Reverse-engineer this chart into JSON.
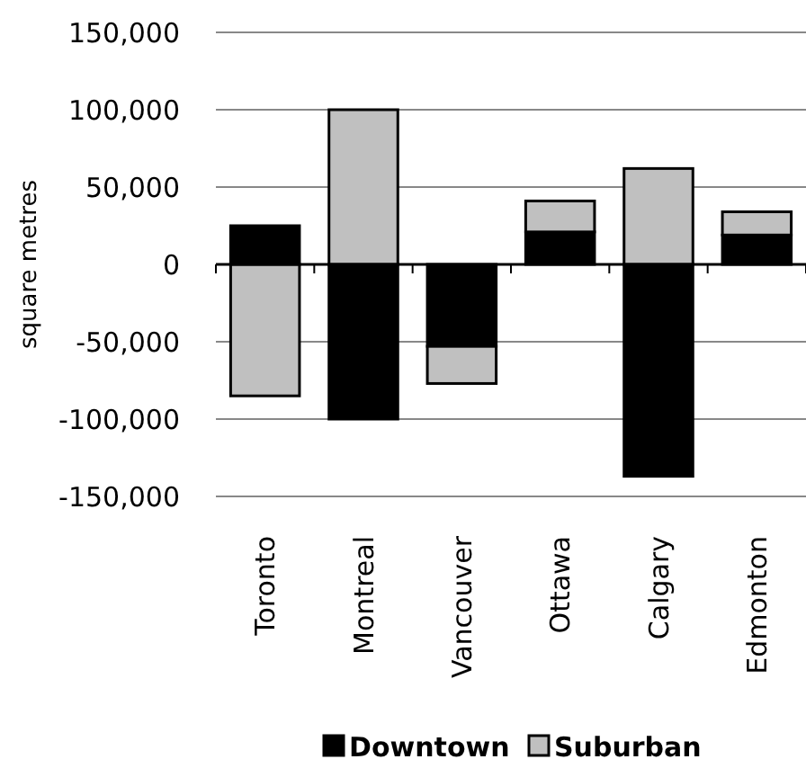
{
  "chart_data": {
    "type": "bar",
    "stacked": true,
    "ylabel": "square metres",
    "categories": [
      "Toronto",
      "Montreal",
      "Vancouver",
      "Ottawa",
      "Calgary",
      "Edmonton"
    ],
    "series": [
      {
        "name": "Downtown",
        "color": "#000000",
        "values": [
          25000,
          -100000,
          -53000,
          21000,
          -137000,
          19000
        ]
      },
      {
        "name": "Suburban",
        "color": "#c0c0c0",
        "values": [
          -85000,
          100000,
          -24000,
          20000,
          62000,
          15000
        ]
      }
    ],
    "ylim": [
      -150000,
      150000
    ],
    "yticks": [
      {
        "value": -150000,
        "label": "-150,000"
      },
      {
        "value": -100000,
        "label": "-100,000"
      },
      {
        "value": -50000,
        "label": "-50,000"
      },
      0,
      {
        "value": 50000,
        "label": "50,000"
      },
      {
        "value": 100000,
        "label": "100,000"
      },
      {
        "value": 150000,
        "label": "150,000"
      }
    ],
    "grid": "y",
    "legend": "bottom"
  }
}
